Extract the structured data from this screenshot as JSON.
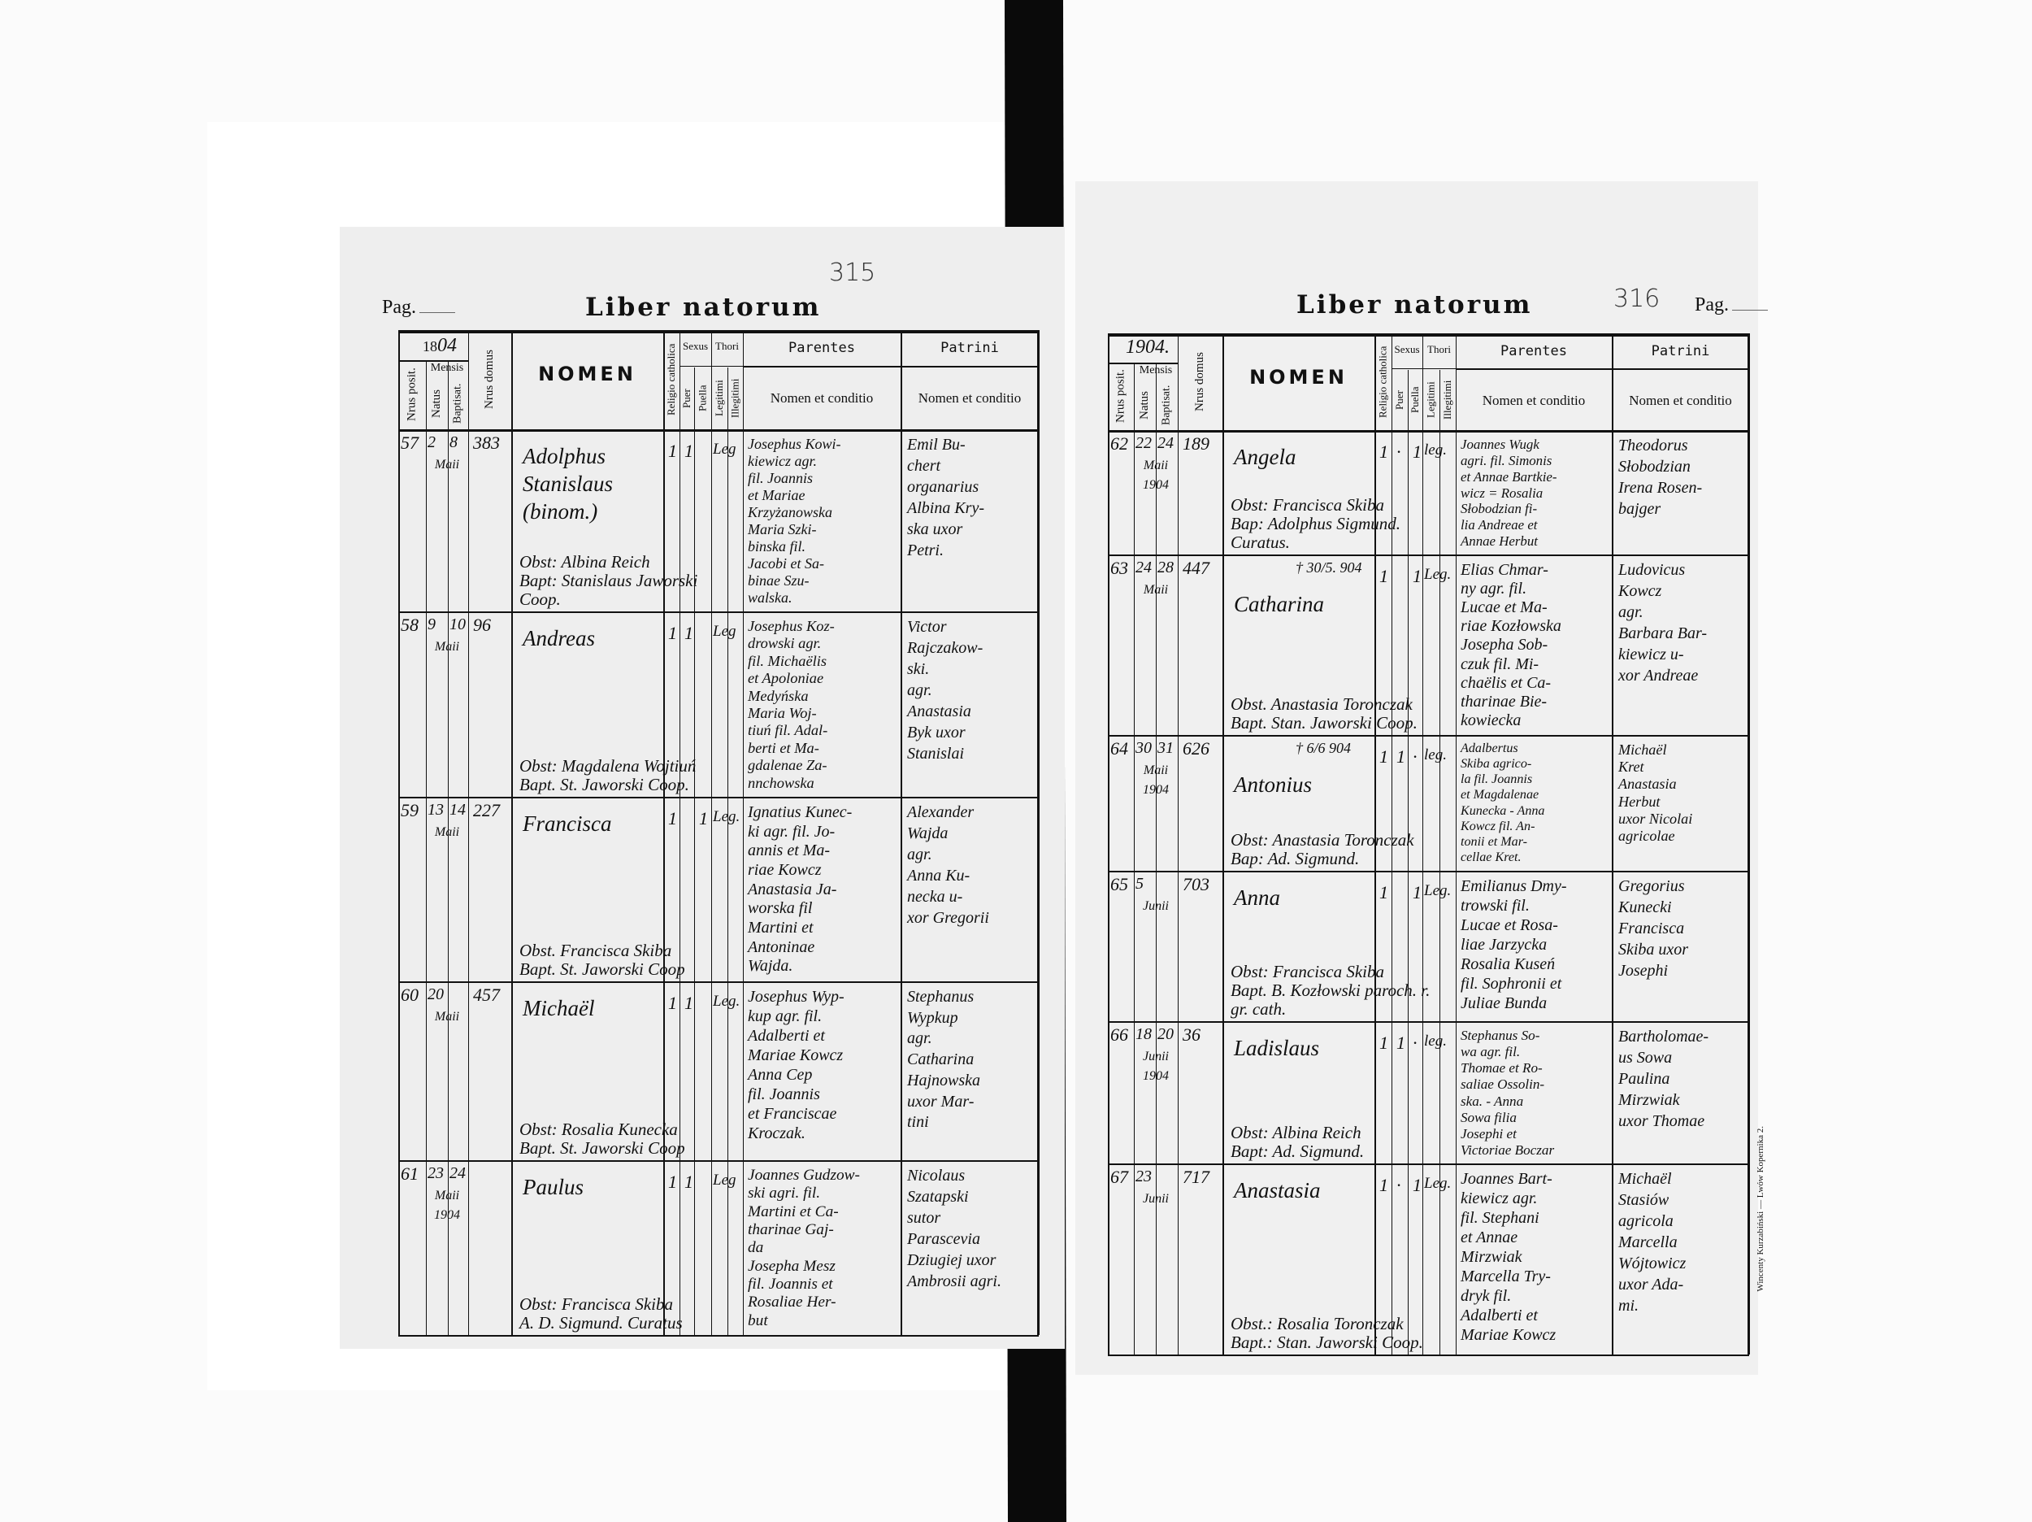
{
  "document": {
    "imprint": "Wincenty Kurzabiński — Lwów Kopernika 2.",
    "headers": {
      "nrus_posit": "Nrus posit.",
      "mensis": "Mensis",
      "natus": "Natus",
      "baptisat": "Baptisat.",
      "nrus_domus": "Nrus domus",
      "nomen": "NOMEN",
      "religio": "Religio catholica",
      "sexus": "Sexus",
      "puer": "Puer",
      "puella": "Puella",
      "thori": "Thori",
      "legitimi": "Legitimi",
      "illegitimi": "Illegitimi",
      "parentes": "Parentes",
      "parentes_sub": "Nomen et conditio",
      "patrini": "Patrini",
      "patrini_sub": "Nomen et conditio"
    },
    "pages": [
      {
        "side": "left",
        "pag_label": "Pag.",
        "title": "Liber natorum",
        "page_number_handwritten": "315",
        "year_printed": "18",
        "year_handwritten": "04",
        "entries": [
          {
            "num": "57",
            "natus": "2",
            "baptisat": "8",
            "month": "Maii",
            "domus": "383",
            "nomen": [
              "Adolphus",
              "Stanislaus",
              "(binom.)"
            ],
            "note": "",
            "religio": "1",
            "puer": "1",
            "puella": "",
            "legitimi": "Leg",
            "parentes": [
              "Josephus Kowi-",
              "kiewicz agr.",
              "fil. Joannis",
              "et Mariae",
              "Krzyżanowska",
              "Maria Szki-",
              "binska fil.",
              "Jacobi et Sa-",
              "binae Szu-",
              "walska."
            ],
            "patrini": [
              "Emil Bu-",
              "chert",
              "organarius",
              "Albina Kry-",
              "ska uxor",
              "Petri."
            ],
            "obst": "Obst: Albina Reich",
            "bapt": "Bapt: Stanislaus Jaworski Coop."
          },
          {
            "num": "58",
            "natus": "9",
            "baptisat": "10",
            "month": "Maii",
            "domus": "96",
            "nomen": [
              "Andreas"
            ],
            "note": "",
            "religio": "1",
            "puer": "1",
            "puella": "",
            "legitimi": "Leg",
            "parentes": [
              "Josephus Koz-",
              "drowski agr.",
              "fil. Michaëlis",
              "et Apoloniae",
              "Medyńska",
              "Maria Woj-",
              "tiuń fil. Adal-",
              "berti et Ma-",
              "gdalenae Za-",
              "nnchowska"
            ],
            "patrini": [
              "Victor",
              "Rajczakow-",
              "ski.",
              "agr.",
              "Anastasia",
              "Byk uxor",
              "Stanislai"
            ],
            "obst": "Obst: Magdalena Wojtiuń",
            "bapt": "Bapt. St. Jaworski Coop."
          },
          {
            "num": "59",
            "natus": "13",
            "baptisat": "14",
            "month": "Maii",
            "domus": "227",
            "nomen": [
              "Francisca"
            ],
            "note": "",
            "religio": "1",
            "puer": "",
            "puella": "1",
            "legitimi": "Leg.",
            "parentes": [
              "Ignatius Kunec-",
              "ki agr. fil. Jo-",
              "annis et Ma-",
              "riae Kowcz",
              "Anastasia Ja-",
              "worska fil",
              "Martini et",
              "Antoninae",
              "Wajda."
            ],
            "patrini": [
              "Alexander",
              "Wajda",
              "agr.",
              "Anna Ku-",
              "necka u-",
              "xor Gregorii"
            ],
            "obst": "Obst. Francisca Skiba",
            "bapt": "Bapt. St. Jaworski Coop"
          },
          {
            "num": "60",
            "natus": "20",
            "baptisat": "",
            "month": "Maii",
            "domus": "457",
            "nomen": [
              "Michaël"
            ],
            "note": "",
            "religio": "1",
            "puer": "1",
            "puella": "",
            "legitimi": "Leg.",
            "parentes": [
              "Josephus Wyp-",
              "kup agr. fil.",
              "Adalberti et",
              "Mariae Kowcz",
              "Anna Cep",
              "fil. Joannis",
              "et Franciscae",
              "Kroczak."
            ],
            "patrini": [
              "Stephanus",
              "Wypkup",
              "agr.",
              "Catharina",
              "Hajnowska",
              "uxor Mar-",
              "tini"
            ],
            "obst": "Obst: Rosalia Kunecka",
            "bapt": "Bapt. St. Jaworski Coop"
          },
          {
            "num": "61",
            "natus": "23",
            "baptisat": "24",
            "month": "Maii 1904",
            "domus": "",
            "nomen": [
              "Paulus"
            ],
            "note": "",
            "religio": "1",
            "puer": "1",
            "puella": "",
            "legitimi": "Leg",
            "parentes": [
              "Joannes Gudzow-",
              "ski agri. fil.",
              "Martini et Ca-",
              "tharinae Gaj-",
              "da",
              "Josepha Mesz",
              "fil. Joannis et",
              "Rosaliae Her-",
              "but"
            ],
            "patrini": [
              "Nicolaus",
              "Szatapski",
              "sutor",
              "Parascevia",
              "Dziugiej uxor",
              "Ambrosii agri."
            ],
            "obst": "Obst: Francisca Skiba",
            "bapt": "A. D. Sigmund. Curatus"
          }
        ]
      },
      {
        "side": "right",
        "pag_label": "Pag.",
        "title": "Liber natorum",
        "page_number_handwritten": "316",
        "year_printed": "",
        "year_handwritten": "1904.",
        "entries": [
          {
            "num": "62",
            "natus": "22",
            "baptisat": "24",
            "month": "Maii 1904",
            "domus": "189",
            "nomen": [
              "Angela"
            ],
            "note": "",
            "religio": "1",
            "puer": "·",
            "puella": "1",
            "legitimi": "leg.",
            "parentes": [
              "Joannes Wugk",
              "agri. fil. Simonis",
              "et Annae Bartkie-",
              "wicz = Rosalia",
              "Słobodzian fi-",
              "lia Andreae et",
              "Annae Herbut"
            ],
            "patrini": [
              "Theodorus",
              "Słobodzian",
              "Irena Rosen-",
              "bajger"
            ],
            "obst": "Obst: Francisca Skiba",
            "bapt": "Bap: Adolphus Sigmund. Curatus."
          },
          {
            "num": "63",
            "natus": "24",
            "baptisat": "28",
            "month": "Maii",
            "domus": "447",
            "nomen": [
              "Catharina"
            ],
            "note": "† 30/5. 904",
            "religio": "1",
            "puer": "",
            "puella": "1",
            "legitimi": "Leg.",
            "parentes": [
              "Elias Chmar-",
              "ny agr. fil.",
              "Lucae et Ma-",
              "riae Kozłowska",
              "Josepha Sob-",
              "czuk fil. Mi-",
              "chaëlis et Ca-",
              "tharinae Bie-",
              "kowiecka"
            ],
            "patrini": [
              "Ludovicus",
              "Kowcz",
              "agr.",
              "Barbara Bar-",
              "kiewicz u-",
              "xor Andreae"
            ],
            "obst": "Obst. Anastasia Toronczak",
            "bapt": "Bapt. Stan. Jaworski Coop."
          },
          {
            "num": "64",
            "natus": "30",
            "baptisat": "31",
            "month": "Maii 1904",
            "domus": "626",
            "nomen": [
              "Antonius"
            ],
            "note": "† 6/6 904",
            "religio": "1",
            "puer": "1",
            "puella": "·",
            "legitimi": "leg.",
            "parentes": [
              "Adalbertus",
              "Skiba agrico-",
              "la fil. Joannis",
              "et Magdalenae",
              "Kunecka - Anna",
              "Kowcz fil. An-",
              "tonii et Mar-",
              "cellae Kret."
            ],
            "patrini": [
              "Michaël",
              "Kret",
              "Anastasia",
              "Herbut",
              "uxor Nicolai",
              "agricolae"
            ],
            "obst": "Obst: Anastasia Toronczak",
            "bapt": "Bap: Ad. Sigmund."
          },
          {
            "num": "65",
            "natus": "5",
            "baptisat": "",
            "month": "Junii",
            "domus": "703",
            "nomen": [
              "Anna"
            ],
            "note": "",
            "religio": "1",
            "puer": "",
            "puella": "1",
            "legitimi": "Leg.",
            "parentes": [
              "Emilianus Dmy-",
              "trowski fil.",
              "Lucae et Rosa-",
              "liae Jarzycka",
              "Rosalia Kuseń",
              "fil. Sophronii et",
              "Juliae Bunda"
            ],
            "patrini": [
              "Gregorius",
              "Kunecki",
              "Francisca",
              "Skiba uxor",
              "Josephi"
            ],
            "obst": "Obst: Francisca Skiba",
            "bapt": "Bapt. B. Kozłowski paroch. r. gr. cath."
          },
          {
            "num": "66",
            "natus": "18",
            "baptisat": "20",
            "month": "Junii 1904",
            "domus": "36",
            "nomen": [
              "Ladislaus"
            ],
            "note": "",
            "religio": "1",
            "puer": "1",
            "puella": "·",
            "legitimi": "leg.",
            "parentes": [
              "Stephanus So-",
              "wa agr. fil.",
              "Thomae et Ro-",
              "saliae Ossolin-",
              "ska. - Anna",
              "Sowa filia",
              "Josephi et",
              "Victoriae Boczar"
            ],
            "patrini": [
              "Bartholomae-",
              "us Sowa",
              "Paulina",
              "Mirzwiak",
              "uxor Thomae"
            ],
            "obst": "Obst: Albina Reich",
            "bapt": "Bapt: Ad. Sigmund."
          },
          {
            "num": "67",
            "natus": "23",
            "baptisat": "",
            "month": "Junii",
            "domus": "717",
            "nomen": [
              "Anastasia"
            ],
            "note": "",
            "religio": "1",
            "puer": "·",
            "puella": "1",
            "legitimi": "Leg.",
            "parentes": [
              "Joannes Bart-",
              "kiewicz agr.",
              "fil. Stephani",
              "et Annae",
              "Mirzwiak",
              "Marcella Try-",
              "dryk fil.",
              "Adalberti et",
              "Mariae Kowcz"
            ],
            "patrini": [
              "Michaël",
              "Stasiów",
              "agricola",
              "Marcella",
              "Wójtowicz",
              "uxor Ada-",
              "mi."
            ],
            "obst": "Obst.: Rosalia Toronczak",
            "bapt": "Bapt.: Stan. Jaworski Coop."
          }
        ]
      }
    ]
  }
}
